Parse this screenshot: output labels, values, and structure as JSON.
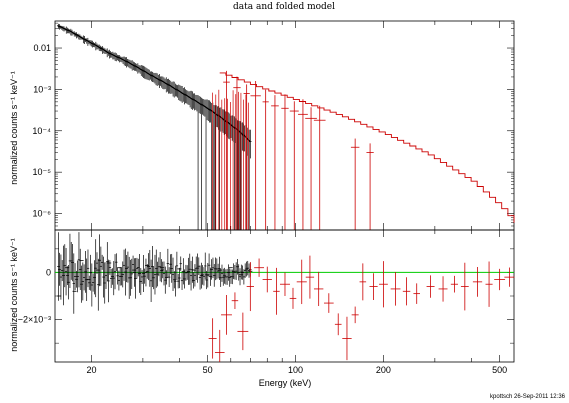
{
  "figure": {
    "title": "data and folded model",
    "footer": "kpottsch 26-Sep-2011 12:36"
  },
  "chart_data": [
    {
      "type": "line",
      "panel": "top",
      "title": "data and folded model",
      "ylabel": "normalized counts s⁻¹ keV⁻¹",
      "xscale": "log",
      "yscale": "log",
      "xlim": [
        15,
        560
      ],
      "ylim": [
        4e-07,
        0.045
      ],
      "xticks": [
        20,
        50,
        100,
        200,
        500
      ],
      "yticks": [
        {
          "value": 0.01,
          "label": "0.01"
        },
        {
          "value": 0.001,
          "label": "10⁻³"
        },
        {
          "value": 0.0001,
          "label": "10⁻⁴"
        },
        {
          "value": 1e-05,
          "label": "10⁻⁵"
        },
        {
          "value": 1e-06,
          "label": "10⁻⁶"
        }
      ],
      "series": [
        {
          "color": "#000000",
          "style": "dense data with error bars",
          "x": [
            15.3,
            17,
            19,
            21,
            23,
            26,
            29,
            32,
            36,
            40,
            45,
            50,
            55,
            60,
            65,
            70
          ],
          "y": [
            0.035,
            0.025,
            0.016,
            0.011,
            0.0075,
            0.005,
            0.0033,
            0.0022,
            0.0014,
            0.0009,
            0.00055,
            0.00035,
            0.00022,
            0.00014,
            9e-05,
            5.5e-05
          ]
        },
        {
          "color": "#cc0000",
          "style": "step model",
          "x": [
            55,
            75,
            100,
            140,
            200,
            280,
            400,
            500,
            560
          ],
          "y": [
            0.0025,
            0.0011,
            0.00055,
            0.00024,
            8.5e-05,
            2.8e-05,
            6e-06,
            1.5e-06,
            6e-07
          ]
        },
        {
          "color": "#cc0000",
          "style": "points with error bars",
          "x": [
            58,
            63,
            68,
            73,
            79,
            85,
            92,
            99,
            106,
            113,
            121,
            160,
            180
          ],
          "y": [
            0.0015,
            0.0011,
            0.0008,
            0.0007,
            0.0005,
            0.0004,
            0.00035,
            0.0003,
            0.00025,
            0.0002,
            0.00018,
            4e-05,
            3e-05
          ]
        }
      ]
    },
    {
      "type": "scatter",
      "panel": "bottom",
      "xlabel": "Energy (keV)",
      "ylabel": "normalized counts s⁻¹ keV⁻¹",
      "xscale": "log",
      "xlim": [
        15,
        560
      ],
      "ylim": [
        -0.0038,
        0.0018
      ],
      "xticks": [
        20,
        50,
        100,
        200,
        500
      ],
      "yticks": [
        {
          "value": 0,
          "label": "0"
        },
        {
          "value": -0.002,
          "label": "−2×10⁻³"
        }
      ],
      "zero_line_color": "#00cc00",
      "series": [
        {
          "color": "#000000",
          "style": "residuals with error bars",
          "x": [
            15.5,
            16.5,
            17.5,
            18.5,
            19.5,
            21,
            23,
            25,
            28,
            31,
            35,
            40,
            45,
            50,
            55,
            60,
            65,
            70
          ],
          "y": [
            -0.001,
            0.0002,
            -0.0008,
            0.0005,
            -0.0003,
            0.0001,
            0.0004,
            0.0002,
            0.0001,
            0.0003,
            0.0002,
            0.00015,
            0.0001,
            -0.0001,
            0.0001,
            0.0002,
            -0.0001,
            5e-05
          ]
        },
        {
          "color": "#cc0000",
          "style": "residuals with error bars",
          "x": [
            52,
            55,
            58,
            62,
            66,
            70,
            75,
            80,
            86,
            92,
            98,
            105,
            112,
            120,
            130,
            140,
            150,
            160,
            170,
            185,
            200,
            220,
            240,
            260,
            290,
            320,
            350,
            380,
            420,
            460,
            500,
            540
          ],
          "y": [
            -0.0028,
            -0.0034,
            -0.0018,
            -0.0012,
            -0.0025,
            -0.0006,
            0.0002,
            -0.0003,
            -0.0008,
            -0.0005,
            -0.0011,
            -0.0004,
            -0.0002,
            -0.0007,
            -0.0013,
            -0.0022,
            -0.0028,
            -0.0018,
            -0.0004,
            -0.0006,
            -0.0005,
            -0.0007,
            -0.0008,
            -0.0009,
            -0.0006,
            -0.0007,
            -0.0005,
            -0.0006,
            -0.0004,
            -0.0005,
            -0.0003,
            -0.0002
          ]
        }
      ]
    }
  ]
}
